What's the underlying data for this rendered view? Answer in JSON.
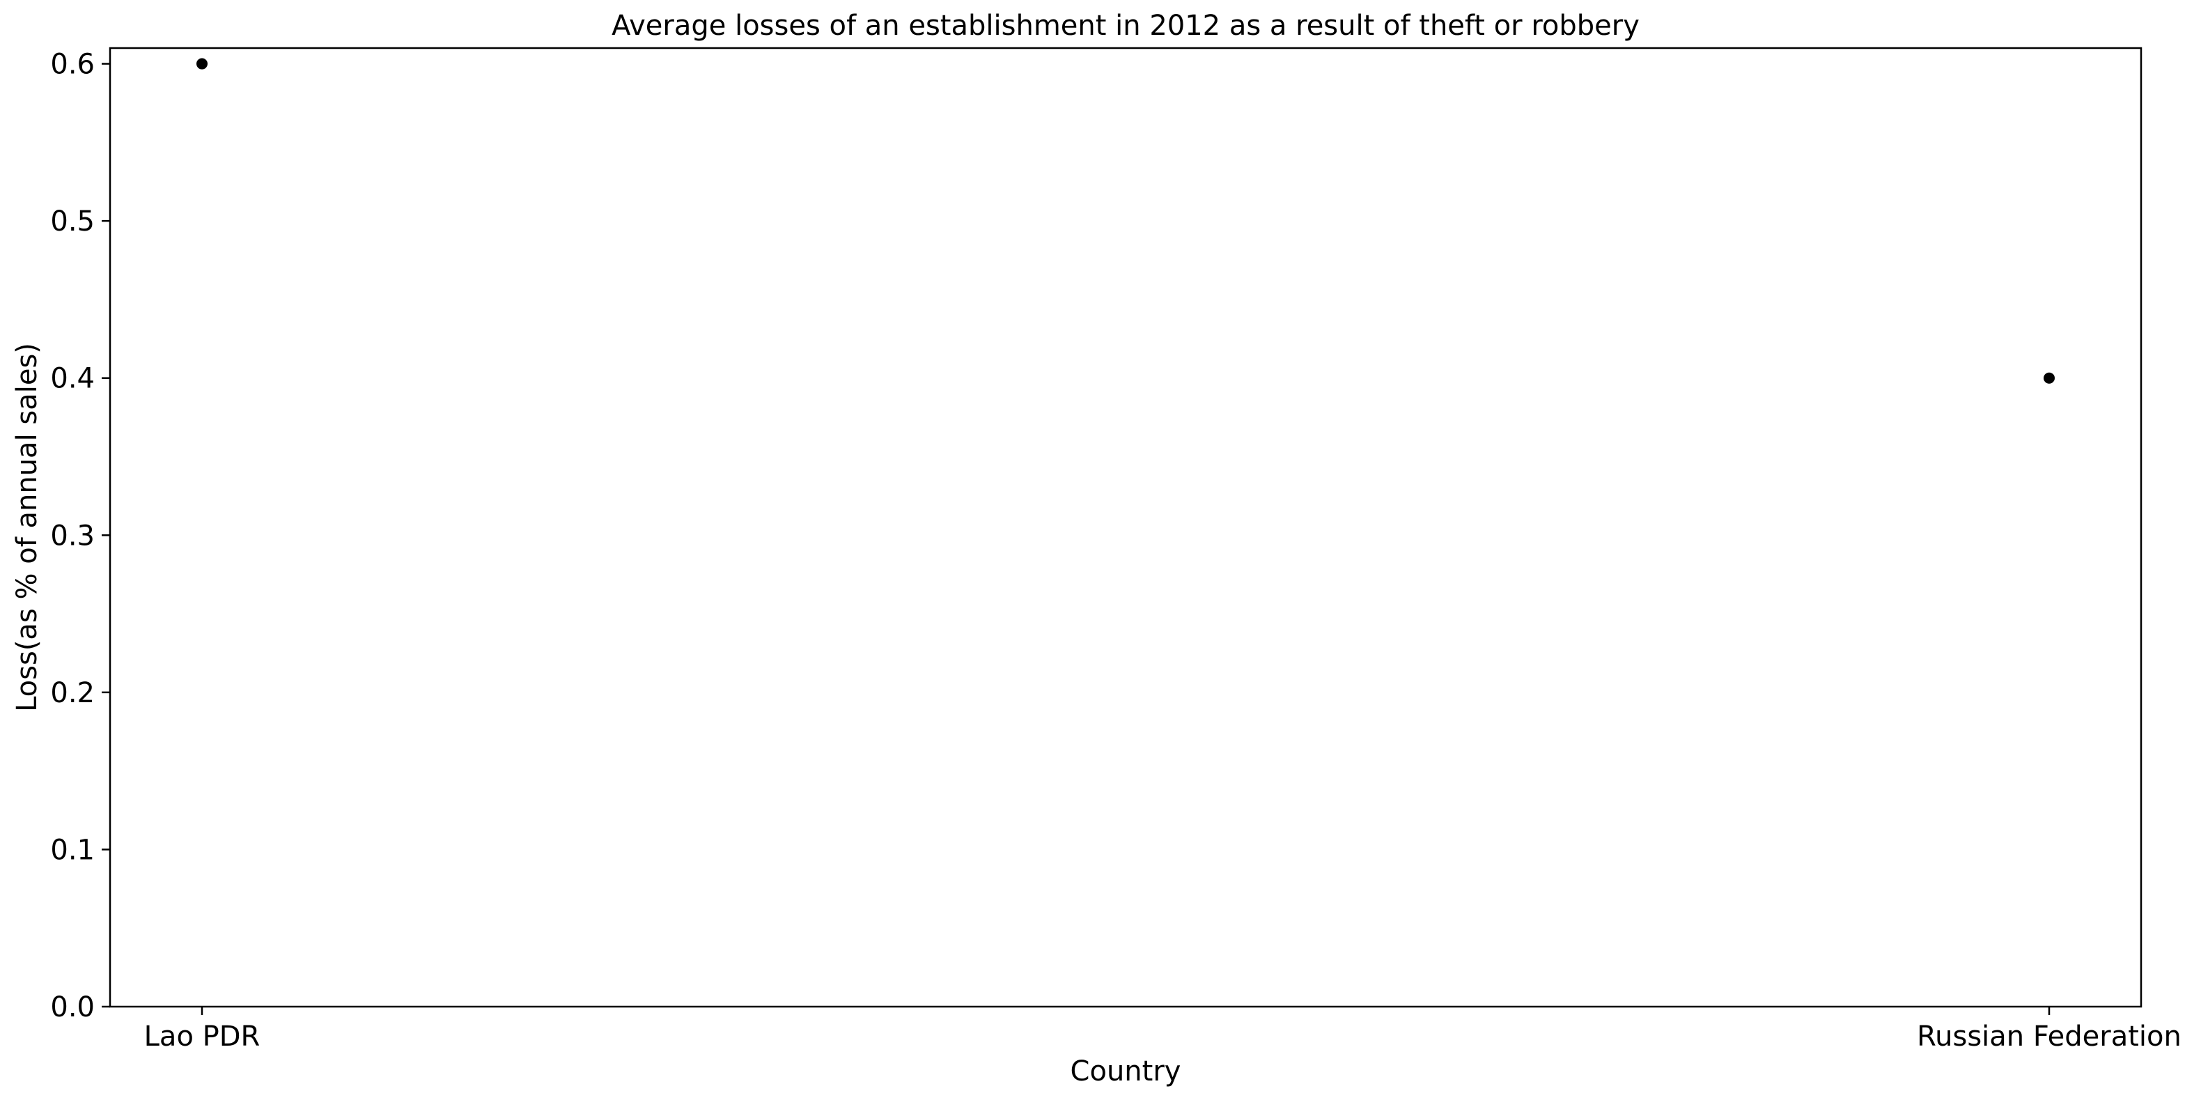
{
  "chart_data": {
    "type": "scatter",
    "title": "Average losses of an establishment in 2012 as a result of theft or robbery",
    "xlabel": "Country",
    "ylabel": "Loss(as % of annual sales)",
    "categories": [
      "Lao PDR",
      "Russian Federation"
    ],
    "series": [
      {
        "values": [
          0.6,
          0.4
        ],
        "color": "#000000"
      }
    ],
    "ylim": [
      0,
      0.61
    ],
    "yticks": [
      0.0,
      0.1,
      0.2,
      0.3,
      0.4,
      0.5,
      0.6
    ],
    "ytick_labels": [
      "0.0",
      "0.1",
      "0.2",
      "0.3",
      "0.4",
      "0.5",
      "0.6"
    ],
    "grid": false,
    "legend": "none"
  }
}
